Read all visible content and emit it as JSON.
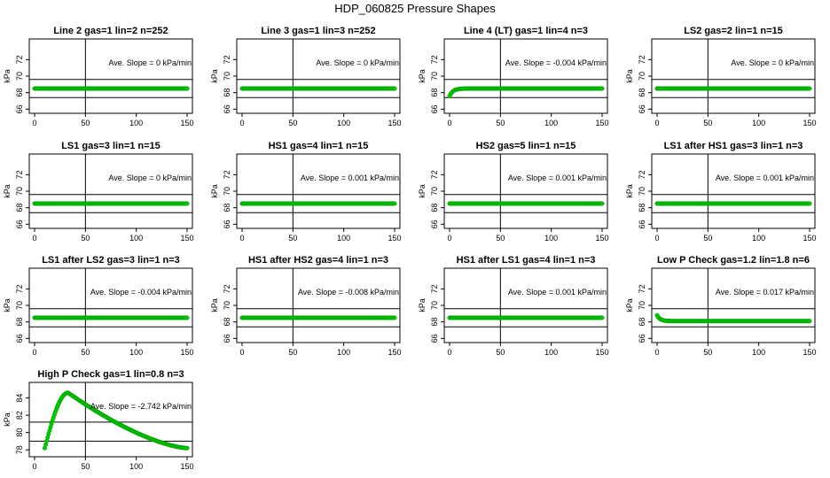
{
  "figure_title": "HDP_060825  Pressure Shapes",
  "colors": {
    "points": "#00cc00",
    "point_edge": "#00a300",
    "axis": "#000000"
  },
  "chart_data": [
    {
      "type": "scatter",
      "title": "Line 2 gas=1 lin=2 n=252",
      "slope_label": "Ave. Slope =  0  kPa/min",
      "xlim": [
        0,
        150
      ],
      "xticks": [
        0,
        50,
        100,
        150
      ],
      "ylim": [
        65.5,
        74.5
      ],
      "yticks": [
        66,
        68,
        70,
        72
      ],
      "ylabel": "kPa",
      "vline": 50,
      "hlines": [
        67.4,
        69.6
      ],
      "shape": "flat",
      "level": 68.5,
      "x_start": 0
    },
    {
      "type": "scatter",
      "title": "Line 3 gas=1 lin=3 n=252",
      "slope_label": "Ave. Slope =  0  kPa/min",
      "xlim": [
        0,
        150
      ],
      "xticks": [
        0,
        50,
        100,
        150
      ],
      "ylim": [
        65.5,
        74.5
      ],
      "yticks": [
        66,
        68,
        70,
        72
      ],
      "ylabel": "kPa",
      "vline": 50,
      "hlines": [
        67.4,
        69.6
      ],
      "shape": "flat",
      "level": 68.5,
      "x_start": 0
    },
    {
      "type": "scatter",
      "title": "Line 4 (LT) gas=1 lin=4 n=3",
      "slope_label": "Ave. Slope =  -0.004  kPa/min",
      "xlim": [
        0,
        150
      ],
      "xticks": [
        0,
        50,
        100,
        150
      ],
      "ylim": [
        65.5,
        74.5
      ],
      "yticks": [
        66,
        68,
        70,
        72
      ],
      "ylabel": "kPa",
      "vline": 50,
      "hlines": [
        67.4,
        69.6
      ],
      "shape": "rise",
      "level": 68.5,
      "start": 67.6,
      "x_start": 0
    },
    {
      "type": "scatter",
      "title": "LS2 gas=2 lin=1 n=15",
      "slope_label": "Ave. Slope =  0  kPa/min",
      "xlim": [
        0,
        150
      ],
      "xticks": [
        0,
        50,
        100,
        150
      ],
      "ylim": [
        65.5,
        74.5
      ],
      "yticks": [
        66,
        68,
        70,
        72
      ],
      "ylabel": "kPa",
      "vline": 50,
      "hlines": [
        67.4,
        69.6
      ],
      "shape": "flat",
      "level": 68.5,
      "x_start": 0
    },
    {
      "type": "scatter",
      "title": "LS1 gas=3 lin=1 n=15",
      "slope_label": "Ave. Slope =  0  kPa/min",
      "xlim": [
        0,
        150
      ],
      "xticks": [
        0,
        50,
        100,
        150
      ],
      "ylim": [
        65.5,
        74.5
      ],
      "yticks": [
        66,
        68,
        70,
        72
      ],
      "ylabel": "kPa",
      "vline": 50,
      "hlines": [
        67.4,
        69.6
      ],
      "shape": "flat",
      "level": 68.5,
      "x_start": 0
    },
    {
      "type": "scatter",
      "title": "HS1 gas=4 lin=1 n=15",
      "slope_label": "Ave. Slope =  0.001  kPa/min",
      "xlim": [
        0,
        150
      ],
      "xticks": [
        0,
        50,
        100,
        150
      ],
      "ylim": [
        65.5,
        74.5
      ],
      "yticks": [
        66,
        68,
        70,
        72
      ],
      "ylabel": "kPa",
      "vline": 50,
      "hlines": [
        67.4,
        69.6
      ],
      "shape": "flat",
      "level": 68.5,
      "x_start": 0
    },
    {
      "type": "scatter",
      "title": "HS2 gas=5 lin=1 n=15",
      "slope_label": "Ave. Slope =  0.001  kPa/min",
      "xlim": [
        0,
        150
      ],
      "xticks": [
        0,
        50,
        100,
        150
      ],
      "ylim": [
        65.5,
        74.5
      ],
      "yticks": [
        66,
        68,
        70,
        72
      ],
      "ylabel": "kPa",
      "vline": 50,
      "hlines": [
        67.4,
        69.6
      ],
      "shape": "flat",
      "level": 68.5,
      "x_start": 0
    },
    {
      "type": "scatter",
      "title": "LS1 after HS1 gas=3 lin=1 n=3",
      "slope_label": "Ave. Slope =  0.001  kPa/min",
      "xlim": [
        0,
        150
      ],
      "xticks": [
        0,
        50,
        100,
        150
      ],
      "ylim": [
        65.5,
        74.5
      ],
      "yticks": [
        66,
        68,
        70,
        72
      ],
      "ylabel": "kPa",
      "vline": 50,
      "hlines": [
        67.4,
        69.6
      ],
      "shape": "flat",
      "level": 68.5,
      "x_start": 0
    },
    {
      "type": "scatter",
      "title": "LS1 after LS2 gas=3 lin=1 n=3",
      "slope_label": "Ave. Slope =  -0.004  kPa/min",
      "xlim": [
        0,
        150
      ],
      "xticks": [
        0,
        50,
        100,
        150
      ],
      "ylim": [
        65.5,
        74.5
      ],
      "yticks": [
        66,
        68,
        70,
        72
      ],
      "ylabel": "kPa",
      "vline": 50,
      "hlines": [
        67.4,
        69.6
      ],
      "shape": "flat",
      "level": 68.5,
      "x_start": 0
    },
    {
      "type": "scatter",
      "title": "HS1 after HS2 gas=4 lin=1 n=3",
      "slope_label": "Ave. Slope =  -0.008  kPa/min",
      "xlim": [
        0,
        150
      ],
      "xticks": [
        0,
        50,
        100,
        150
      ],
      "ylim": [
        65.5,
        74.5
      ],
      "yticks": [
        66,
        68,
        70,
        72
      ],
      "ylabel": "kPa",
      "vline": 50,
      "hlines": [
        67.4,
        69.6
      ],
      "shape": "flat",
      "level": 68.5,
      "x_start": 0
    },
    {
      "type": "scatter",
      "title": "HS1 after LS1 gas=4 lin=1 n=3",
      "slope_label": "Ave. Slope =  0.001  kPa/min",
      "xlim": [
        0,
        150
      ],
      "xticks": [
        0,
        50,
        100,
        150
      ],
      "ylim": [
        65.5,
        74.5
      ],
      "yticks": [
        66,
        68,
        70,
        72
      ],
      "ylabel": "kPa",
      "vline": 50,
      "hlines": [
        67.4,
        69.6
      ],
      "shape": "flat",
      "level": 68.5,
      "x_start": 0
    },
    {
      "type": "scatter",
      "title": "Low P Check gas=1.2 lin=1.8 n=6",
      "slope_label": "Ave. Slope =  0.017  kPa/min",
      "xlim": [
        0,
        150
      ],
      "xticks": [
        0,
        50,
        100,
        150
      ],
      "ylim": [
        65.5,
        74.5
      ],
      "yticks": [
        66,
        68,
        70,
        72
      ],
      "ylabel": "kPa",
      "vline": 50,
      "hlines": [
        67.4,
        69.6
      ],
      "shape": "dip",
      "level": 68.1,
      "start": 68.8,
      "x_start": 0
    },
    {
      "type": "scatter",
      "title": "High P Check gas=1 lin=0.8 n=3",
      "slope_label": "Ave. Slope =  -2.742  kPa/min",
      "xlim": [
        0,
        150
      ],
      "xticks": [
        0,
        50,
        100,
        150
      ],
      "ylim": [
        77.2,
        85.8
      ],
      "yticks": [
        78,
        80,
        82,
        84
      ],
      "ylabel": "kPa",
      "vline": 50,
      "hlines": [
        79.0,
        81.2
      ],
      "shape": "peak",
      "x_start": 10,
      "start": 78.2,
      "peak_x": 33,
      "peak": 84.6,
      "end": 78.2
    }
  ]
}
